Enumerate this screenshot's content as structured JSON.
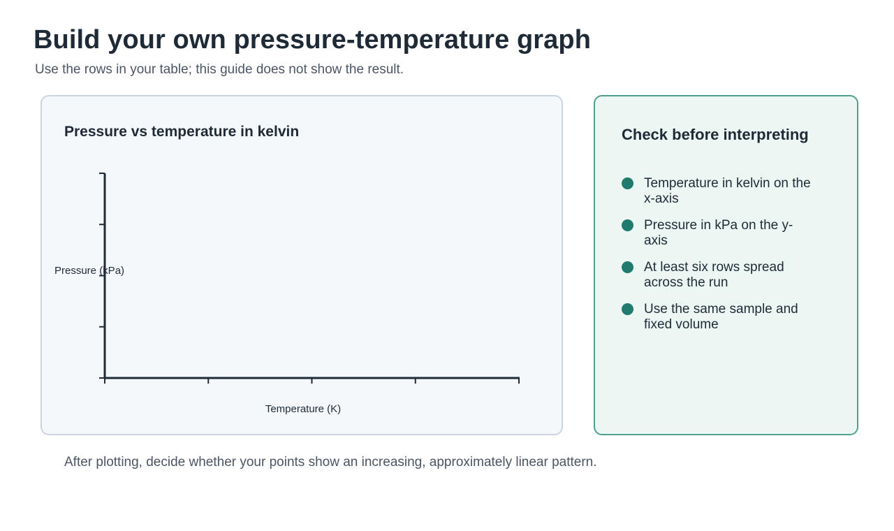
{
  "page": {
    "title": "Build your own pressure-temperature graph",
    "subtitle": "Use the rows in your table; this guide does not show the result.",
    "footer_note": "After plotting, decide whether your points show an increasing, approximately linear pattern."
  },
  "chart_data": {
    "type": "scatter",
    "title": "Pressure vs temperature in kelvin",
    "xlabel": "Temperature (K)",
    "ylabel": "Pressure (kPa)",
    "x_tick_count": 5,
    "y_tick_count": 5,
    "x_tick_labels": [],
    "y_tick_labels": [],
    "series": [],
    "grid": false,
    "colors": {
      "axis": "#1f2a37",
      "text": "#1f2a37"
    }
  },
  "checklist": {
    "title": "Check before interpreting",
    "items": [
      "Temperature in kelvin on the x-axis",
      "Pressure in kPa on the y-axis",
      "At least six rows spread across the run",
      "Use the same sample and fixed volume"
    ],
    "accent_color": "#217a6e"
  }
}
